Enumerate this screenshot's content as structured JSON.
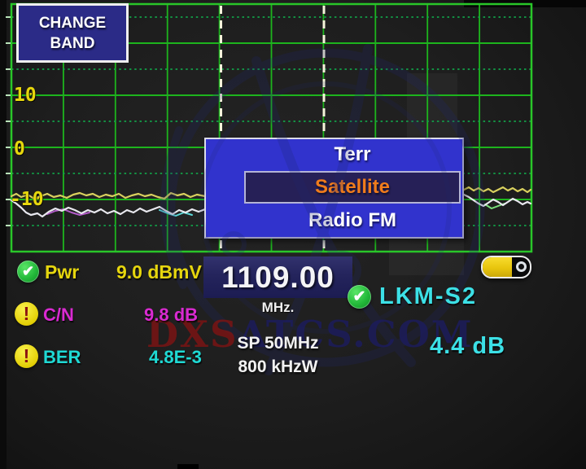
{
  "change_band": {
    "line1": "CHANGE",
    "line2": "BAND"
  },
  "axis": {
    "labels": {
      "top": "10",
      "mid": "0",
      "bottom": "-10"
    }
  },
  "menu": {
    "items": [
      {
        "label": "Terr",
        "selected": false
      },
      {
        "label": "Satellite",
        "selected": true
      },
      {
        "label": "Radio FM",
        "selected": false
      }
    ]
  },
  "frequency": {
    "value": "1109.00",
    "unit": "MHz.",
    "span": "SP 50MHz",
    "bandwidth": "800 kHzW"
  },
  "measurements": {
    "pwr": {
      "label": "Pwr",
      "value": "9.0 dBmV",
      "icon": "check-icon"
    },
    "cn": {
      "label": "C/N",
      "value": "9.8 dB",
      "icon": "warning-icon"
    },
    "ber": {
      "label": "BER",
      "value": "4.8E-3",
      "icon": "warning-icon"
    }
  },
  "lock": {
    "label": "LKM-S2",
    "value": "4.4 dB",
    "icon": "check-icon"
  },
  "battery": {
    "level": 0.62
  },
  "icons": {
    "check": "✔",
    "warning": "!"
  },
  "watermark": {
    "part1": "DXS",
    "part2": "ATCS.COM"
  },
  "colors": {
    "grid_solid": "#1db41d",
    "grid_dotted": "#12a048",
    "grid_border": "#29c629",
    "grid_tick": "#b9e4b9",
    "marker_dash": "#f4f4da",
    "popup_blue": "#3133cd",
    "selected_orange": "#f07c1c",
    "value_yellow": "#e6d60e",
    "value_magenta": "#d92ad1",
    "value_cyan": "#1fd9d4",
    "lock_cyan": "#3ce0e6"
  },
  "spectrum": {
    "markers_x": [
      271.5,
      398
    ],
    "traces": [
      {
        "name": "trace-left-yellow",
        "color": "#d9d05e",
        "width": 2.2,
        "points": [
          [
            14,
            241
          ],
          [
            20,
            238
          ],
          [
            26,
            242
          ],
          [
            34,
            239
          ],
          [
            42,
            244
          ],
          [
            50,
            241
          ],
          [
            58,
            238
          ],
          [
            66,
            242
          ],
          [
            74,
            240
          ],
          [
            82,
            243
          ],
          [
            90,
            239
          ],
          [
            98,
            237
          ],
          [
            106,
            240
          ],
          [
            114,
            238
          ],
          [
            122,
            242
          ],
          [
            130,
            239
          ],
          [
            138,
            241
          ],
          [
            146,
            238
          ],
          [
            154,
            243
          ],
          [
            162,
            240
          ],
          [
            170,
            238
          ],
          [
            178,
            241
          ],
          [
            186,
            239
          ],
          [
            194,
            242
          ],
          [
            202,
            244
          ],
          [
            210,
            237
          ],
          [
            218,
            240
          ],
          [
            226,
            238
          ],
          [
            234,
            242
          ],
          [
            242,
            239
          ],
          [
            252,
            241
          ]
        ]
      },
      {
        "name": "trace-left-magenta-tint",
        "color": "#b35cc9",
        "width": 2,
        "points": [
          [
            58,
            263
          ],
          [
            68,
            259
          ],
          [
            78,
            257
          ],
          [
            88,
            261
          ],
          [
            98,
            264
          ],
          [
            110,
            261
          ]
        ]
      },
      {
        "name": "trace-left-cyan-tint",
        "color": "#5cd8d8",
        "width": 2,
        "points": [
          [
            196,
            258
          ],
          [
            206,
            262
          ],
          [
            216,
            265
          ],
          [
            226,
            261
          ],
          [
            236,
            264
          ]
        ]
      },
      {
        "name": "trace-left-white",
        "color": "#e9e9ef",
        "width": 2.2,
        "points": [
          [
            14,
            246
          ],
          [
            20,
            250
          ],
          [
            26,
            255
          ],
          [
            32,
            261
          ],
          [
            38,
            264
          ],
          [
            46,
            262
          ],
          [
            52,
            266
          ],
          [
            60,
            260
          ],
          [
            68,
            256
          ],
          [
            76,
            259
          ],
          [
            84,
            255
          ],
          [
            92,
            258
          ],
          [
            100,
            262
          ],
          [
            108,
            258
          ],
          [
            116,
            261
          ],
          [
            124,
            257
          ],
          [
            132,
            262
          ],
          [
            140,
            259
          ],
          [
            148,
            263
          ],
          [
            156,
            258
          ],
          [
            164,
            261
          ],
          [
            172,
            256
          ],
          [
            180,
            260
          ],
          [
            188,
            257
          ],
          [
            196,
            254
          ],
          [
            204,
            259
          ],
          [
            212,
            263
          ],
          [
            220,
            258
          ],
          [
            228,
            261
          ],
          [
            236,
            257
          ],
          [
            244,
            260
          ],
          [
            252,
            257
          ]
        ]
      },
      {
        "name": "trace-right-yellow",
        "color": "#d9d05e",
        "width": 2.2,
        "points": [
          [
            570,
            233
          ],
          [
            576,
            230
          ],
          [
            582,
            234
          ],
          [
            588,
            231
          ],
          [
            594,
            235
          ],
          [
            600,
            232
          ],
          [
            606,
            236
          ],
          [
            612,
            233
          ],
          [
            618,
            230
          ],
          [
            624,
            234
          ],
          [
            630,
            231
          ],
          [
            636,
            235
          ],
          [
            642,
            232
          ],
          [
            648,
            236
          ],
          [
            652,
            233
          ]
        ]
      },
      {
        "name": "trace-right-green-tint",
        "color": "#7ae07a",
        "width": 2,
        "points": [
          [
            596,
            251
          ],
          [
            604,
            256
          ],
          [
            612,
            253
          ],
          [
            620,
            250
          ]
        ]
      },
      {
        "name": "trace-right-white",
        "color": "#e9e9ef",
        "width": 2.2,
        "points": [
          [
            570,
            239
          ],
          [
            576,
            242
          ],
          [
            582,
            246
          ],
          [
            588,
            250
          ],
          [
            594,
            253
          ],
          [
            600,
            249
          ],
          [
            606,
            245
          ],
          [
            612,
            248
          ],
          [
            618,
            252
          ],
          [
            624,
            248
          ],
          [
            630,
            244
          ],
          [
            636,
            247
          ],
          [
            642,
            251
          ],
          [
            648,
            248
          ],
          [
            652,
            250
          ]
        ]
      }
    ]
  }
}
